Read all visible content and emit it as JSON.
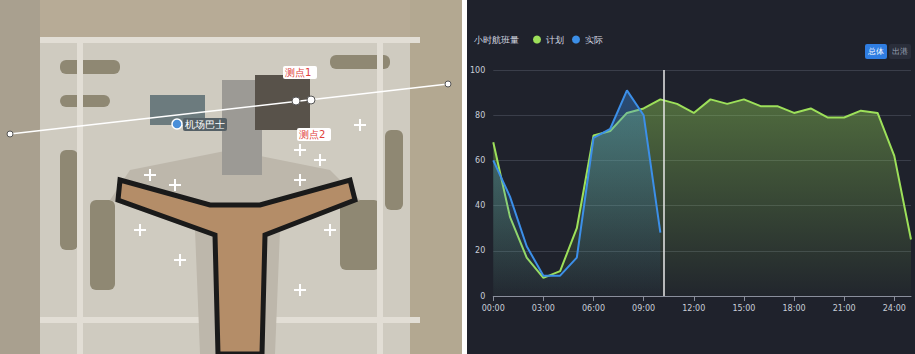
{
  "map": {
    "labels": {
      "point1": "测点1",
      "point2": "测点2",
      "pin": "机场巴士"
    }
  },
  "buttons": [
    "总体",
    "出港"
  ],
  "chart_data": {
    "type": "line",
    "title": "小时航班量",
    "x": [
      0,
      1,
      2,
      3,
      4,
      5,
      6,
      7,
      8,
      9,
      10,
      11,
      12,
      13,
      14,
      15,
      16,
      17,
      18,
      19,
      20,
      21,
      22,
      23,
      24,
      25
    ],
    "series": [
      {
        "name": "计划",
        "color": "#9de05a",
        "values": [
          68,
          35,
          17,
          8,
          11,
          30,
          71,
          73,
          81,
          83,
          87,
          85,
          81,
          87,
          85,
          87,
          84,
          84,
          81,
          83,
          79,
          79,
          82,
          81,
          62,
          25
        ]
      },
      {
        "name": "实际",
        "color": "#3c8fe8",
        "values": [
          60,
          44,
          22,
          9,
          9,
          17,
          70,
          74,
          91,
          80,
          28,
          null,
          null,
          null,
          null,
          null,
          null,
          null,
          null,
          null,
          null,
          null,
          null,
          null,
          null,
          null
        ]
      }
    ],
    "current_x": 10.2,
    "xlim": [
      0,
      25
    ],
    "xticks": [
      {
        "value": 0,
        "label": "00:00"
      },
      {
        "value": 3,
        "label": "03:00"
      },
      {
        "value": 6,
        "label": "06:00"
      },
      {
        "value": 9,
        "label": "09:00"
      },
      {
        "value": 12,
        "label": "12:00"
      },
      {
        "value": 15,
        "label": "15:00"
      },
      {
        "value": 18,
        "label": "18:00"
      },
      {
        "value": 21,
        "label": "21:00"
      },
      {
        "value": 24,
        "label": "24:00"
      }
    ],
    "ylim": [
      0,
      100
    ],
    "yticks": [
      0,
      20,
      40,
      60,
      80,
      100
    ],
    "grid": true,
    "legend": "top"
  }
}
